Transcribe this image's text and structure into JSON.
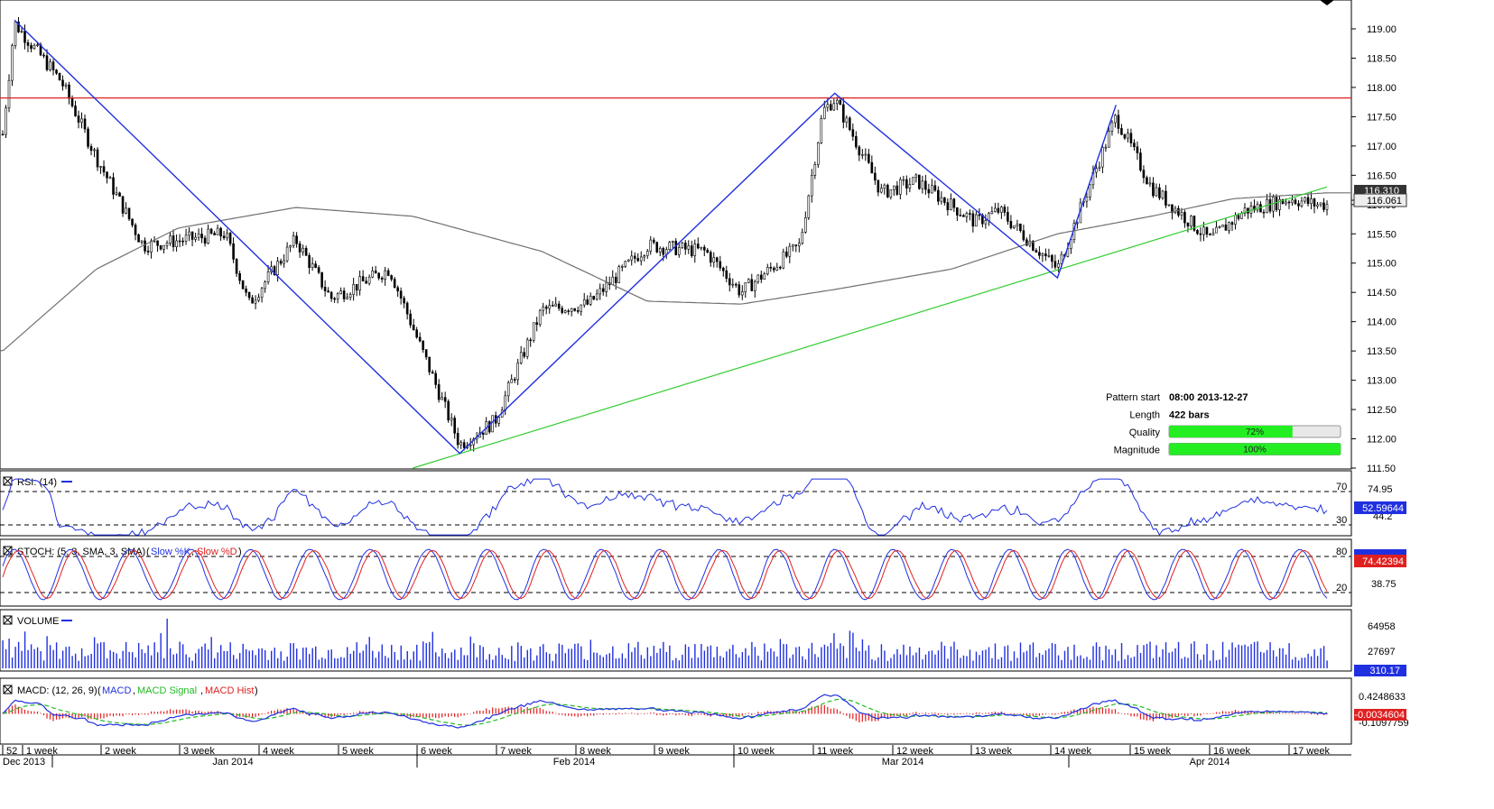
{
  "panels": {
    "price": {
      "type": "candlestick",
      "y_axis_ticks": [
        "119.00",
        "118.50",
        "118.00",
        "117.50",
        "117.00",
        "116.50",
        "116.00",
        "115.50",
        "115.00",
        "114.50",
        "114.00",
        "113.50",
        "113.00",
        "112.50",
        "112.00",
        "111.50"
      ],
      "ylim": [
        111.5,
        119.2
      ],
      "last_price_labels": [
        "116.310",
        "116.061"
      ],
      "horizontal_line": {
        "value": 117.82,
        "color": "#e02020"
      },
      "moving_average_color": "#707070",
      "pattern_zigzag_color": "#2030e0",
      "trendline_color": "#33cc33",
      "info": [
        {
          "label": "Pattern start",
          "value": "08:00 2013-12-27"
        },
        {
          "label": "Length",
          "value": "422 bars"
        },
        {
          "label": "Quality",
          "value": "72%",
          "fraction": 0.72
        },
        {
          "label": "Magnitude",
          "value": "100%",
          "fraction": 1.0
        }
      ],
      "bar_fill_color": "#22ee22"
    },
    "rsi": {
      "title": "RSI: (14)",
      "levels": [
        "70",
        "30"
      ],
      "axis_tick": "74.95",
      "value_label": "52.59644",
      "value_label_under": "44.2",
      "line_color": "#2030e0"
    },
    "stoch": {
      "title": "STOCH: (5, 3, SMA, 3, SMA)",
      "legend": [
        {
          "name": "Slow %K",
          "color": "#2030e0"
        },
        {
          "name": "Slow %D",
          "color": "#e02020"
        }
      ],
      "levels": [
        "80",
        "20"
      ],
      "axis_tick": "38.75",
      "value_label": "74.42394"
    },
    "volume": {
      "title": "VOLUME",
      "axis_ticks": [
        "64958",
        "27697"
      ],
      "value_label": "310.17",
      "bar_color": "#2030e0"
    },
    "macd": {
      "title": "MACD: (12, 26, 9)",
      "legend": [
        {
          "name": "MACD",
          "color": "#2030e0"
        },
        {
          "name": "MACD Signal",
          "color": "#22bb22"
        },
        {
          "name": "MACD Hist",
          "color": "#e02020"
        }
      ],
      "axis_ticks": [
        "0.4248633",
        "-0.1097759"
      ],
      "value_label": "-0.0034604"
    }
  },
  "x_axis": {
    "week_labels": [
      "52",
      "1 week",
      "2 week",
      "3 week",
      "4 week",
      "5 week",
      "6 week",
      "7 week",
      "8 week",
      "9 week",
      "10 week",
      "11 week",
      "12 week",
      "13 week",
      "14 week",
      "15 week",
      "16 week",
      "17 week"
    ],
    "month_labels": [
      "Dec 2013",
      "Jan 2014",
      "Feb 2014",
      "Mar 2014",
      "Apr 2014"
    ]
  },
  "chart_data": {
    "type": "candlestick",
    "title": "",
    "pattern": {
      "zigzag": [
        {
          "date": "2013-12-27",
          "value": 119.15
        },
        {
          "date": "2014-02-03",
          "value": 111.75
        },
        {
          "date": "2014-03-07",
          "value": 117.9
        },
        {
          "date": "2014-03-26",
          "value": 114.75
        },
        {
          "date": "2014-03-31",
          "value": 117.7
        }
      ],
      "resistance": 117.82,
      "support_trendline": [
        {
          "date": "2014-01-30",
          "value": 111.5
        },
        {
          "date": "2014-04-18",
          "value": 116.3
        }
      ]
    },
    "price_path": [
      {
        "date": "2013-12-26",
        "value": 117.2
      },
      {
        "date": "2013-12-27",
        "value": 119.1
      },
      {
        "date": "2013-12-31",
        "value": 118.1
      },
      {
        "date": "2014-01-03",
        "value": 116.8
      },
      {
        "date": "2014-01-07",
        "value": 115.3
      },
      {
        "date": "2014-01-14",
        "value": 115.5
      },
      {
        "date": "2014-01-16",
        "value": 114.3
      },
      {
        "date": "2014-01-20",
        "value": 115.4
      },
      {
        "date": "2014-01-23",
        "value": 114.4
      },
      {
        "date": "2014-01-28",
        "value": 114.9
      },
      {
        "date": "2014-02-03",
        "value": 111.9
      },
      {
        "date": "2014-02-06",
        "value": 112.3
      },
      {
        "date": "2014-02-10",
        "value": 114.2
      },
      {
        "date": "2014-02-14",
        "value": 114.3
      },
      {
        "date": "2014-02-19",
        "value": 115.3
      },
      {
        "date": "2014-02-24",
        "value": 115.2
      },
      {
        "date": "2014-02-27",
        "value": 114.5
      },
      {
        "date": "2014-03-04",
        "value": 115.3
      },
      {
        "date": "2014-03-06",
        "value": 117.6
      },
      {
        "date": "2014-03-07",
        "value": 117.8
      },
      {
        "date": "2014-03-11",
        "value": 116.2
      },
      {
        "date": "2014-03-14",
        "value": 116.4
      },
      {
        "date": "2014-03-19",
        "value": 115.7
      },
      {
        "date": "2014-03-21",
        "value": 115.9
      },
      {
        "date": "2014-03-26",
        "value": 114.9
      },
      {
        "date": "2014-03-31",
        "value": 117.5
      },
      {
        "date": "2014-04-03",
        "value": 116.3
      },
      {
        "date": "2014-04-08",
        "value": 115.4
      },
      {
        "date": "2014-04-11",
        "value": 115.9
      },
      {
        "date": "2014-04-15",
        "value": 116.1
      },
      {
        "date": "2014-04-17",
        "value": 116.0
      }
    ],
    "moving_average": [
      {
        "date": "2013-12-26",
        "value": 113.5
      },
      {
        "date": "2014-01-03",
        "value": 114.9
      },
      {
        "date": "2014-01-10",
        "value": 115.6
      },
      {
        "date": "2014-01-20",
        "value": 115.95
      },
      {
        "date": "2014-01-30",
        "value": 115.8
      },
      {
        "date": "2014-02-10",
        "value": 115.2
      },
      {
        "date": "2014-02-19",
        "value": 114.35
      },
      {
        "date": "2014-02-27",
        "value": 114.3
      },
      {
        "date": "2014-03-07",
        "value": 114.55
      },
      {
        "date": "2014-03-17",
        "value": 114.9
      },
      {
        "date": "2014-03-26",
        "value": 115.5
      },
      {
        "date": "2014-04-03",
        "value": 115.8
      },
      {
        "date": "2014-04-10",
        "value": 116.1
      },
      {
        "date": "2014-04-18",
        "value": 116.2
      }
    ],
    "rsi": {
      "last": 52.59644,
      "levels": [
        70,
        30
      ]
    },
    "stoch": {
      "last": 74.42394,
      "levels": [
        80,
        20
      ]
    },
    "volume": {
      "last": 310.17
    },
    "macd": {
      "last": -0.0034604,
      "ylim": [
        -0.1097759,
        0.4248633
      ]
    }
  }
}
